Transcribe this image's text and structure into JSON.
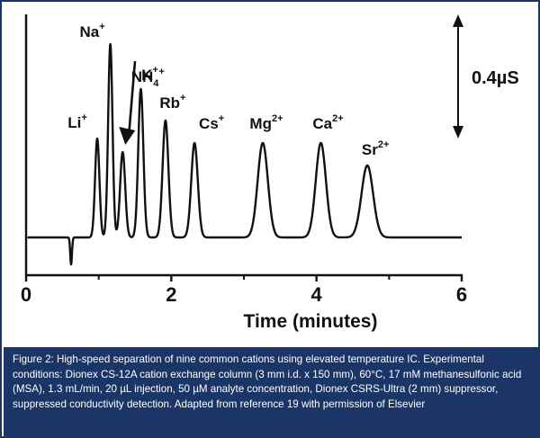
{
  "chart_data": {
    "type": "line",
    "xlabel": "Time (minutes)",
    "xlim": [
      0,
      6
    ],
    "x_ticks": [
      0,
      2,
      4,
      6
    ],
    "x_tick_labels": [
      "0",
      "2",
      "4",
      "6"
    ],
    "scale_bar_label": "0.4µS",
    "series": [
      {
        "peaks": [
          {
            "ion": "Li",
            "charge": "+",
            "t": 0.98,
            "height": 0.44,
            "width": 0.03
          },
          {
            "ion": "Na",
            "charge": "+",
            "t": 1.16,
            "height": 0.86,
            "width": 0.03
          },
          {
            "ion": "NH",
            "sub": "4",
            "charge": "+",
            "t": 1.33,
            "height": 0.38,
            "width": 0.035
          },
          {
            "ion": "K",
            "charge": "+",
            "t": 1.58,
            "height": 0.66,
            "width": 0.035
          },
          {
            "ion": "Rb",
            "charge": "+",
            "t": 1.92,
            "height": 0.52,
            "width": 0.04
          },
          {
            "ion": "Cs",
            "charge": "+",
            "t": 2.32,
            "height": 0.42,
            "width": 0.045
          },
          {
            "ion": "Mg",
            "charge": "2+",
            "t": 3.26,
            "height": 0.42,
            "width": 0.07
          },
          {
            "ion": "Ca",
            "charge": "2+",
            "t": 4.06,
            "height": 0.42,
            "width": 0.07
          },
          {
            "ion": "Sr",
            "charge": "2+",
            "t": 4.7,
            "height": 0.32,
            "width": 0.08
          }
        ],
        "system_dip": {
          "t": 0.62,
          "depth": -0.12
        }
      }
    ]
  },
  "caption": {
    "text": "Figure 2:  High-speed separation of nine common cations using elevated temperature IC. Experimental conditions: Dionex CS-12A cation exchange column (3 mm i.d. x 150 mm), 60°C, 17 mM methanesulfonic acid (MSA), 1.3 mL/min, 20 µL injection, 50 µM analyte concentration, Dionex CSRS-Ultra (2 mm) suppressor, suppressed conductivity detection. Adapted from reference 19 with permission of Elsevier"
  },
  "colors": {
    "trace": "#111111",
    "caption_bg": "#1b3566",
    "caption_text": "#ffffff"
  }
}
